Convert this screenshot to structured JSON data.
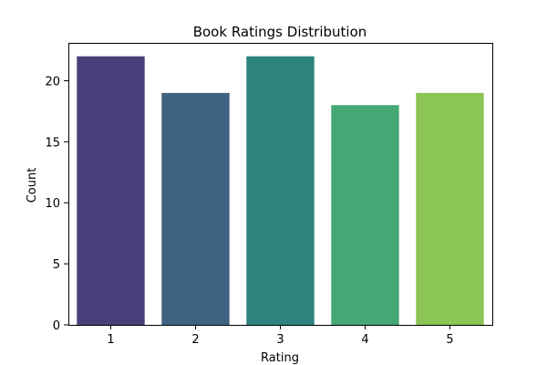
{
  "chart_data": {
    "type": "bar",
    "title": "Book Ratings Distribution",
    "xlabel": "Rating",
    "ylabel": "Count",
    "categories": [
      "1",
      "2",
      "3",
      "4",
      "5"
    ],
    "values": [
      22,
      19,
      22,
      18,
      19
    ],
    "colors": [
      "#4b3f7b",
      "#3e6381",
      "#2c847d",
      "#45a874",
      "#8bc555"
    ],
    "ylim": [
      0,
      23.1
    ],
    "yticks": [
      0,
      5,
      10,
      15,
      20
    ],
    "grid": false,
    "legend": "none"
  }
}
